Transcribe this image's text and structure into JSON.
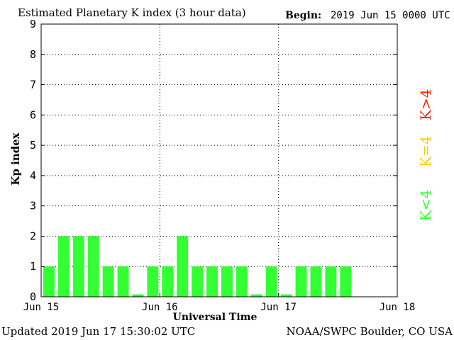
{
  "header": {
    "title": "Estimated Planetary K index (3 hour data)",
    "begin_label": "Begin:",
    "begin_value": "2019 Jun 15 0000 UTC"
  },
  "footer": {
    "updated": "Updated 2019 Jun 17 15:30:02 UTC",
    "source": "NOAA/SWPC Boulder, CO USA"
  },
  "legend": {
    "low": {
      "label": "K<4",
      "color": "#33ff33"
    },
    "mid": {
      "label": "K=4",
      "color": "#ffcc00"
    },
    "high": {
      "label": "K>4",
      "color": "#ff2200"
    }
  },
  "chart_data": {
    "type": "bar",
    "title": "Estimated Planetary K index (3 hour data)",
    "xlabel": "Universal Time",
    "ylabel": "Kp index",
    "ylim": [
      0,
      9
    ],
    "yticks": [
      0,
      1,
      2,
      3,
      4,
      5,
      6,
      7,
      8,
      9
    ],
    "xticks": [
      "Jun 15",
      "Jun 16",
      "Jun 17",
      "Jun 18"
    ],
    "slots_per_day": 8,
    "grid": true,
    "values": [
      1,
      2,
      2,
      2,
      1,
      1,
      0,
      1,
      1,
      2,
      1,
      1,
      1,
      1,
      0,
      1,
      0,
      1,
      1,
      1,
      1
    ]
  }
}
